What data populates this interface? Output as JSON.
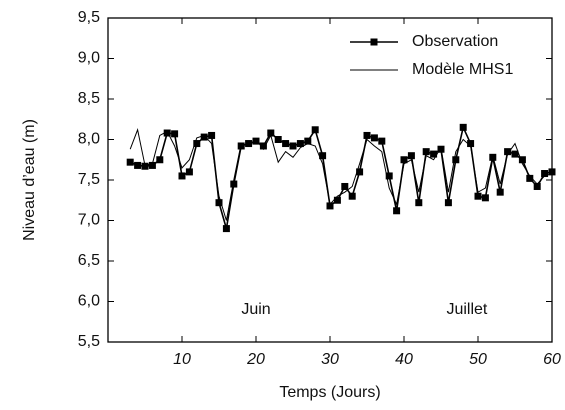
{
  "chart_data": {
    "type": "line",
    "xlabel": "Temps (Jours)",
    "ylabel": "Niveau d’eau (m)",
    "annotations": [
      "Juin",
      "Juillet"
    ],
    "x": [
      3,
      4,
      5,
      6,
      7,
      8,
      9,
      10,
      11,
      12,
      13,
      14,
      15,
      16,
      17,
      18,
      19,
      20,
      21,
      22,
      23,
      24,
      25,
      26,
      27,
      28,
      29,
      30,
      31,
      32,
      33,
      34,
      35,
      36,
      37,
      38,
      39,
      40,
      41,
      42,
      43,
      44,
      45,
      46,
      47,
      48,
      49,
      50,
      51,
      52,
      53,
      54,
      55,
      56,
      57,
      58,
      59,
      60
    ],
    "series": [
      {
        "name": "Observation",
        "color": "#000000",
        "marker": "square",
        "values": [
          7.72,
          7.68,
          7.67,
          7.68,
          7.75,
          8.08,
          8.07,
          7.55,
          7.6,
          7.95,
          8.03,
          8.05,
          7.22,
          6.9,
          7.45,
          7.92,
          7.95,
          7.98,
          7.92,
          8.08,
          8.0,
          7.95,
          7.92,
          7.95,
          7.98,
          8.12,
          7.8,
          7.18,
          7.25,
          7.42,
          7.3,
          7.6,
          8.05,
          8.02,
          7.98,
          7.55,
          7.12,
          7.75,
          7.8,
          7.22,
          7.85,
          7.82,
          7.88,
          7.22,
          7.75,
          8.15,
          7.95,
          7.3,
          7.28,
          7.78,
          7.35,
          7.85,
          7.82,
          7.75,
          7.52,
          7.42,
          7.58,
          7.6
        ]
      },
      {
        "name": "Modèle MHS1",
        "color": "#000000",
        "values": [
          7.88,
          8.12,
          7.68,
          7.7,
          8.05,
          8.1,
          7.92,
          7.65,
          7.75,
          8.02,
          8.05,
          7.95,
          7.3,
          7.0,
          7.5,
          7.95,
          7.92,
          8.0,
          7.88,
          8.05,
          7.72,
          7.85,
          7.78,
          7.9,
          7.95,
          7.92,
          7.7,
          7.2,
          7.3,
          7.35,
          7.42,
          7.7,
          8.0,
          7.92,
          7.85,
          7.4,
          7.2,
          7.7,
          7.75,
          7.35,
          7.8,
          7.75,
          7.9,
          7.35,
          7.85,
          8.0,
          7.92,
          7.35,
          7.4,
          7.8,
          7.45,
          7.82,
          7.95,
          7.7,
          7.55,
          7.45,
          7.55,
          7.58
        ]
      }
    ],
    "xlim": [
      0,
      60
    ],
    "xticks": [
      10,
      20,
      30,
      40,
      50,
      60
    ],
    "ylim": [
      5.5,
      9.5
    ],
    "yticks": [
      {
        "value": 5.5,
        "label": "5,5"
      },
      {
        "value": 6.0,
        "label": "6,0"
      },
      {
        "value": 6.5,
        "label": "6,5"
      },
      {
        "value": 7.0,
        "label": "7,0"
      },
      {
        "value": 7.5,
        "label": "7,5"
      },
      {
        "value": 8.0,
        "label": "8,0"
      },
      {
        "value": 8.5,
        "label": "8,5"
      },
      {
        "value": 9.0,
        "label": "9,0"
      },
      {
        "value": 9.5,
        "label": "9,5"
      }
    ],
    "legend": "upper right",
    "grid": false
  }
}
